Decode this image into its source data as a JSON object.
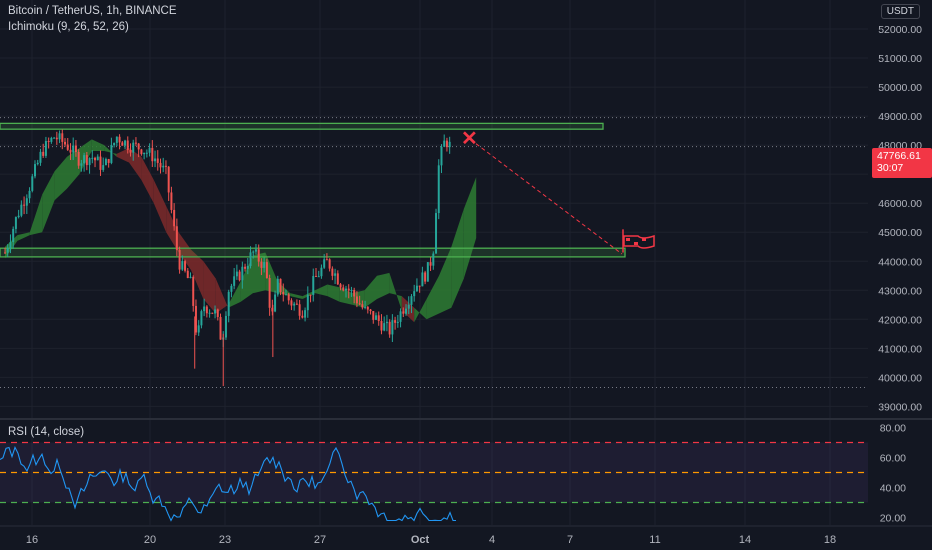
{
  "header": {
    "symbol": "Bitcoin / TetherUS, 1h, BINANCE",
    "indicator": "Ichimoku (9, 26, 52, 26)"
  },
  "currency": "USDT",
  "price_label": {
    "price": "47766.61",
    "countdown": "30:07",
    "color": "#f23645"
  },
  "rsi": {
    "label": "RSI (14, close)",
    "levels": {
      "upper": 70,
      "mid": 50,
      "lower": 30
    },
    "ylim": [
      15,
      85
    ],
    "ticks": [
      "80.00",
      "60.00",
      "40.00",
      "20.00"
    ]
  },
  "price_axis": {
    "ticks": [
      "52000.00",
      "51000.00",
      "50000.00",
      "49000.00",
      "48000.00",
      "47000.00",
      "46000.00",
      "45000.00",
      "44000.00",
      "43000.00",
      "42000.00",
      "41000.00",
      "40000.00",
      "39000.00"
    ],
    "ylim": [
      38600,
      53000
    ]
  },
  "time_axis": {
    "labels": [
      "16",
      "20",
      "23",
      "27",
      "Oct",
      "4",
      "7",
      "11",
      "14",
      "18"
    ]
  },
  "colors": {
    "bg": "#131722",
    "grid": "#1e222d",
    "up": "#26a69a",
    "down": "#ef5350",
    "cloud_bull": "#2e7d32",
    "cloud_bear": "#7f2a2a",
    "zone": "#4caf50",
    "rsi_line": "#2196f3",
    "target": "#f23645",
    "rsi_upper": "#f23645",
    "rsi_mid": "#ff9800",
    "rsi_lower": "#4caf50"
  },
  "chart_data": {
    "type": "candlestick",
    "support_zone": [
      44150,
      44450
    ],
    "resistance_zone": [
      48550,
      48750
    ],
    "dotted_levels": [
      48950,
      47950,
      39650
    ],
    "cloud": [
      {
        "t": 0,
        "a": 44500,
        "b": 44100
      },
      {
        "t": 1,
        "a": 44900,
        "b": 44700
      },
      {
        "t": 2,
        "a": 45000,
        "b": 44900
      },
      {
        "t": 3,
        "a": 46300,
        "b": 45000
      },
      {
        "t": 4,
        "a": 47100,
        "b": 46100
      },
      {
        "t": 5,
        "a": 47600,
        "b": 46500
      },
      {
        "t": 6,
        "a": 47900,
        "b": 47000
      },
      {
        "t": 7,
        "a": 48200,
        "b": 47800
      },
      {
        "t": 8,
        "a": 48000,
        "b": 47800
      },
      {
        "t": 9,
        "a": 47600,
        "b": 47700
      },
      {
        "t": 10,
        "a": 47400,
        "b": 47900
      },
      {
        "t": 11,
        "a": 46800,
        "b": 47600
      },
      {
        "t": 12,
        "a": 46000,
        "b": 46800
      },
      {
        "t": 13,
        "a": 45000,
        "b": 45900
      },
      {
        "t": 14,
        "a": 44300,
        "b": 45000
      },
      {
        "t": 15,
        "a": 43700,
        "b": 44400
      },
      {
        "t": 16,
        "a": 42700,
        "b": 44000
      },
      {
        "t": 17,
        "a": 42200,
        "b": 43400
      },
      {
        "t": 18,
        "a": 42500,
        "b": 42400
      },
      {
        "t": 19,
        "a": 43300,
        "b": 42600
      },
      {
        "t": 20,
        "a": 44200,
        "b": 42900
      },
      {
        "t": 21,
        "a": 44300,
        "b": 43000
      },
      {
        "t": 22,
        "a": 43300,
        "b": 42900
      },
      {
        "t": 23,
        "a": 42900,
        "b": 42800
      },
      {
        "t": 24,
        "a": 42800,
        "b": 42700
      },
      {
        "t": 25,
        "a": 43000,
        "b": 42900
      },
      {
        "t": 26,
        "a": 43200,
        "b": 42800
      },
      {
        "t": 27,
        "a": 43100,
        "b": 42600
      },
      {
        "t": 28,
        "a": 42900,
        "b": 42500
      },
      {
        "t": 29,
        "a": 43000,
        "b": 42400
      },
      {
        "t": 30,
        "a": 43500,
        "b": 42700
      },
      {
        "t": 31,
        "a": 43600,
        "b": 42900
      },
      {
        "t": 32,
        "a": 42300,
        "b": 42800
      },
      {
        "t": 33,
        "a": 41900,
        "b": 42400
      },
      {
        "t": 34,
        "a": 42700,
        "b": 42000
      },
      {
        "t": 35,
        "a": 43500,
        "b": 42200
      },
      {
        "t": 36,
        "a": 44500,
        "b": 42400
      },
      {
        "t": 37,
        "a": 45800,
        "b": 43400
      },
      {
        "t": 38,
        "a": 46900,
        "b": 44800
      }
    ],
    "target": {
      "price": 44250,
      "t": 38
    },
    "high_marker": {
      "price": 48200,
      "t": 35.5
    }
  }
}
